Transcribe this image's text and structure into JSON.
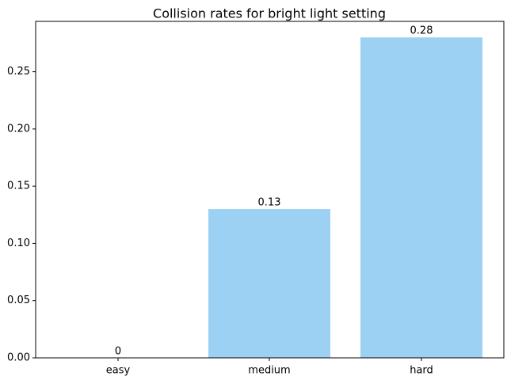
{
  "chart_data": {
    "type": "bar",
    "title": "Collision rates for bright light setting",
    "xlabel": "",
    "ylabel": "",
    "categories": [
      "easy",
      "medium",
      "hard"
    ],
    "values": [
      0,
      0.13,
      0.28
    ],
    "value_labels": [
      "0",
      "0.13",
      "0.28"
    ],
    "ylim": [
      0,
      0.294
    ],
    "yticks": [
      0.0,
      0.05,
      0.1,
      0.15,
      0.2,
      0.25
    ],
    "ytick_labels": [
      "0.00",
      "0.05",
      "0.10",
      "0.15",
      "0.20",
      "0.25"
    ],
    "grid": false,
    "legend": "none",
    "colors": {
      "bar": "#9dd1f3",
      "axis": "#000000",
      "text": "#000000",
      "background": "#ffffff"
    }
  }
}
